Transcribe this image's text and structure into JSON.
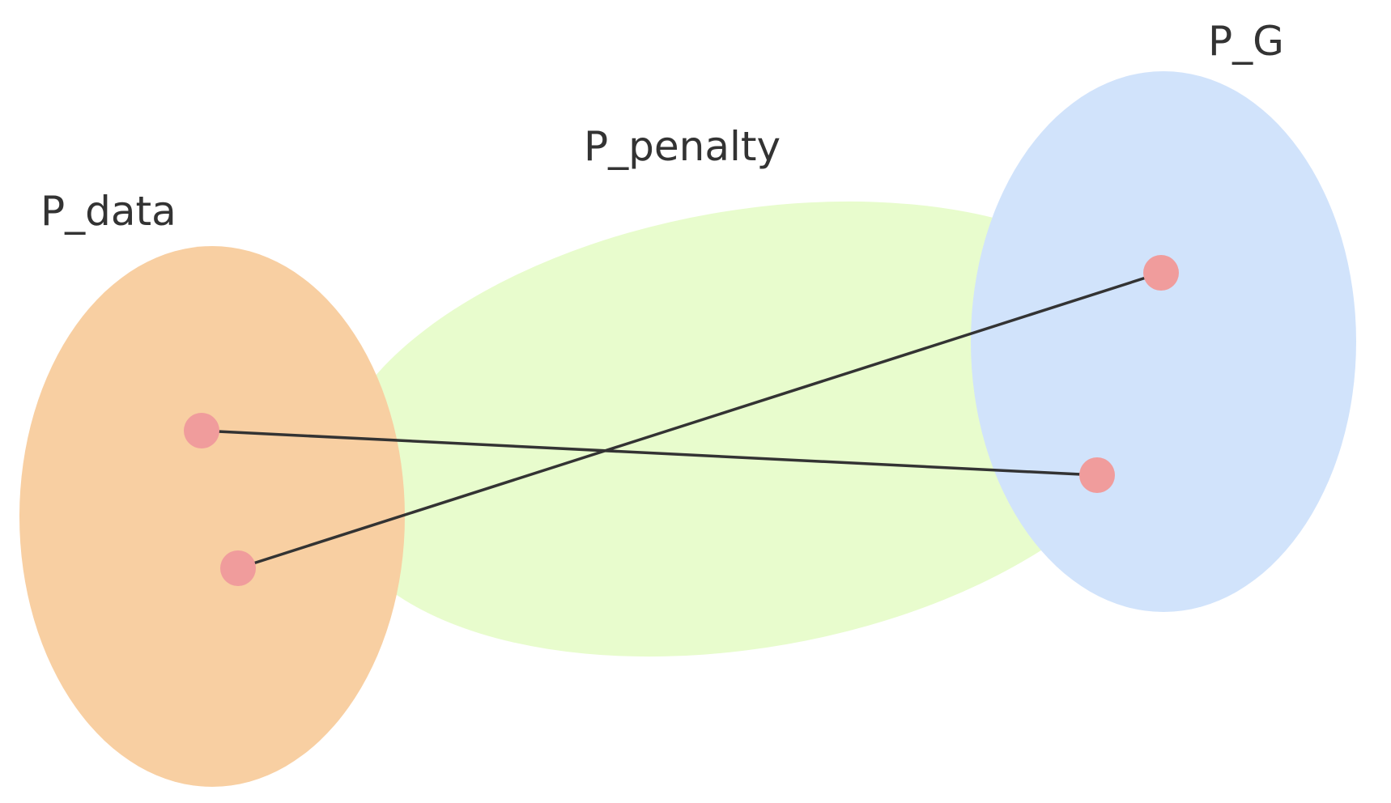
{
  "labels": {
    "p_data": "P_data",
    "p_penalty": "P_penalty",
    "p_g": "P_G"
  },
  "colors": {
    "p_data_fill": "#f8cfa2",
    "p_penalty_fill": "#e8fccd",
    "p_g_fill": "#d1e3fb",
    "point_fill": "#f09c9c",
    "line_stroke": "#333333"
  }
}
